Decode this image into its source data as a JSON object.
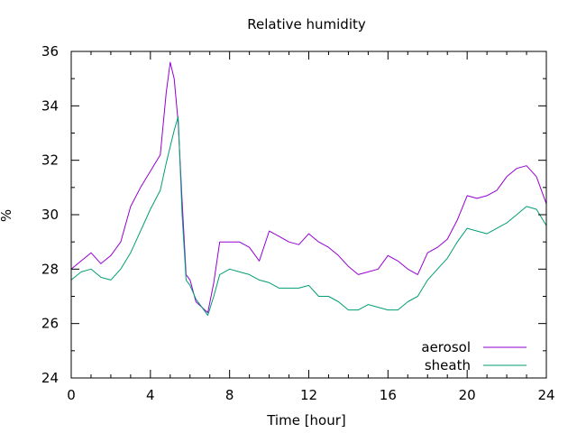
{
  "chart_data": {
    "type": "line",
    "title": "Relative humidity",
    "xlabel": "Time [hour]",
    "ylabel": "%",
    "xlim": [
      0,
      24
    ],
    "ylim": [
      24,
      36
    ],
    "x_ticks": [
      0,
      4,
      8,
      12,
      16,
      20,
      24
    ],
    "y_ticks": [
      24,
      26,
      28,
      30,
      32,
      34,
      36
    ],
    "x_tick_labels": [
      "0",
      "4",
      "8",
      "12",
      "16",
      "20",
      "24"
    ],
    "y_tick_labels": [
      "24",
      "26",
      "28",
      "30",
      "32",
      "34",
      "36"
    ],
    "grid": false,
    "legend_position": "bottom-right",
    "series": [
      {
        "name": "aerosol",
        "color": "#9400d3",
        "x": [
          0,
          0.5,
          1,
          1.5,
          2,
          2.5,
          3,
          3.5,
          4,
          4.5,
          4.8,
          5,
          5.2,
          5.4,
          5.6,
          5.8,
          6,
          6.3,
          6.6,
          6.9,
          7.2,
          7.5,
          8,
          8.5,
          9,
          9.5,
          10,
          10.5,
          11,
          11.5,
          12,
          12.5,
          13,
          13.5,
          14,
          14.5,
          15,
          15.5,
          16,
          16.5,
          17,
          17.5,
          18,
          18.5,
          19,
          19.5,
          20,
          20.5,
          21,
          21.5,
          22,
          22.5,
          23,
          23.5,
          24
        ],
        "y": [
          28.0,
          28.3,
          28.6,
          28.2,
          28.5,
          29.0,
          30.3,
          31.0,
          31.6,
          32.2,
          34.5,
          35.6,
          35.0,
          33.4,
          30.5,
          27.8,
          27.6,
          26.8,
          26.6,
          26.4,
          27.5,
          29.0,
          29.0,
          29.0,
          28.8,
          28.3,
          29.4,
          29.2,
          29.0,
          28.9,
          29.3,
          29.0,
          28.8,
          28.5,
          28.1,
          27.8,
          27.9,
          28.0,
          28.5,
          28.3,
          28.0,
          27.8,
          28.6,
          28.8,
          29.1,
          29.8,
          30.7,
          30.6,
          30.7,
          30.9,
          31.4,
          31.7,
          31.8,
          31.4,
          30.4
        ]
      },
      {
        "name": "sheath",
        "color": "#009e73",
        "x": [
          0,
          0.5,
          1,
          1.5,
          2,
          2.5,
          3,
          3.5,
          4,
          4.5,
          4.8,
          5,
          5.2,
          5.4,
          5.6,
          5.8,
          6,
          6.3,
          6.6,
          6.9,
          7.2,
          7.5,
          8,
          8.5,
          9,
          9.5,
          10,
          10.5,
          11,
          11.5,
          12,
          12.5,
          13,
          13.5,
          14,
          14.5,
          15,
          15.5,
          16,
          16.5,
          17,
          17.5,
          18,
          18.5,
          19,
          19.5,
          20,
          20.5,
          21,
          21.5,
          22,
          22.5,
          23,
          23.5,
          24
        ],
        "y": [
          27.6,
          27.9,
          28.0,
          27.7,
          27.6,
          28.0,
          28.6,
          29.4,
          30.2,
          30.9,
          31.9,
          32.5,
          33.1,
          33.6,
          30.0,
          27.6,
          27.4,
          26.9,
          26.6,
          26.3,
          27.0,
          27.8,
          28.0,
          27.9,
          27.8,
          27.6,
          27.5,
          27.3,
          27.3,
          27.3,
          27.4,
          27.0,
          27.0,
          26.8,
          26.5,
          26.5,
          26.7,
          26.6,
          26.5,
          26.5,
          26.8,
          27.0,
          27.6,
          28.0,
          28.4,
          29.0,
          29.5,
          29.4,
          29.3,
          29.5,
          29.7,
          30.0,
          30.3,
          30.2,
          29.6
        ]
      }
    ]
  }
}
